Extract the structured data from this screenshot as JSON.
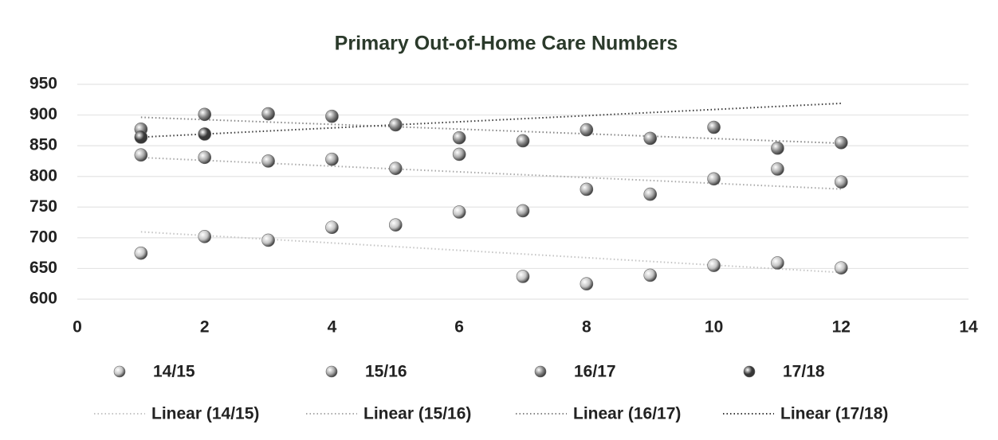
{
  "chart_data": {
    "type": "scatter",
    "title": "Primary Out-of-Home Care Numbers",
    "x": [
      1,
      2,
      3,
      4,
      5,
      6,
      7,
      8,
      9,
      10,
      11,
      12
    ],
    "series": [
      {
        "name": "14/15",
        "color": "#c4c4c4",
        "trendline_name": "Linear (14/15)",
        "values": [
          675,
          702,
          696,
          717,
          721,
          742,
          637,
          625,
          639,
          655,
          659,
          651
        ]
      },
      {
        "name": "15/16",
        "color": "#a8a8a8",
        "trendline_name": "Linear (15/16)",
        "values": [
          835,
          831,
          825,
          828,
          813,
          836,
          744,
          779,
          771,
          796,
          812,
          791
        ]
      },
      {
        "name": "16/17",
        "color": "#858585",
        "trendline_name": "Linear (16/17)",
        "values": [
          877,
          901,
          902,
          898,
          884,
          863,
          858,
          876,
          862,
          880,
          846,
          855
        ]
      },
      {
        "name": "17/18",
        "color": "#3a3a3a",
        "trendline_name": "Linear (17/18)",
        "values": [
          864,
          869,
          null,
          null,
          null,
          null,
          null,
          null,
          null,
          null,
          null,
          null
        ]
      }
    ],
    "xlim": [
      0,
      14
    ],
    "xticks": [
      0,
      2,
      4,
      6,
      8,
      10,
      12,
      14
    ],
    "ylim": [
      600,
      950
    ],
    "yticks": [
      600,
      650,
      700,
      750,
      800,
      850,
      900,
      950
    ],
    "grid": true,
    "trendline": "linear",
    "legend": "bottom"
  }
}
